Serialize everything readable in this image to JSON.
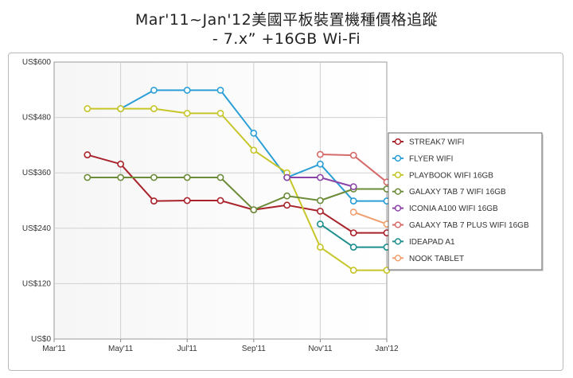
{
  "title_line_1": "Mar'11~Jan'12美國平板裝置機種價格追蹤",
  "title_line_2": "- 7.x”  +16GB Wi-Fi",
  "chart_data": {
    "type": "line",
    "title": "Mar'11~Jan'12美國平板裝置機種價格追蹤 - 7.x”  +16GB Wi-Fi",
    "xlabel": "",
    "ylabel": "",
    "x_tick_labels": [
      "Mar'11",
      "May'11",
      "Jul'11",
      "Sep'11",
      "Nov'11",
      "Jan'12"
    ],
    "y_tick_labels": [
      "US$0",
      "US$120",
      "US$240",
      "US$360",
      "US$480",
      "US$600"
    ],
    "ylim": [
      0,
      600
    ],
    "grid": true,
    "legend_position": "right",
    "x_points": [
      "Apr'11",
      "May'11",
      "Jun'11",
      "Jul'11",
      "Aug'11",
      "Sep'11",
      "Oct'11",
      "Nov'11",
      "Dec'11",
      "Jan'12"
    ],
    "series": [
      {
        "name": "STREAK7 WIFI",
        "color": "#a8232b",
        "values": [
          399,
          379,
          299,
          300,
          300,
          280,
          290,
          277,
          230,
          230
        ]
      },
      {
        "name": "FLYER WIFI",
        "color": "#2b9fd6",
        "values": [
          null,
          499,
          539,
          539,
          539,
          446,
          350,
          379,
          299,
          299
        ]
      },
      {
        "name": "PLAYBOOK WIFI 16GB",
        "color": "#c6c62a",
        "values": [
          499,
          499,
          499,
          489,
          489,
          409,
          360,
          199,
          149,
          149
        ]
      },
      {
        "name": "GALAXY TAB 7 WIFI 16GB",
        "color": "#6c8c3a",
        "values": [
          350,
          350,
          350,
          350,
          350,
          280,
          310,
          300,
          325,
          325
        ]
      },
      {
        "name": "ICONIA A100 WIFI 16GB",
        "color": "#8a44a8",
        "values": [
          null,
          null,
          null,
          null,
          null,
          null,
          350,
          350,
          330,
          null
        ]
      },
      {
        "name": "GALAXY TAB 7 PLUS WIFI 16GB",
        "color": "#d66a6a",
        "values": [
          null,
          null,
          null,
          null,
          null,
          null,
          null,
          400,
          398,
          340
        ]
      },
      {
        "name": "IDEAPAD A1",
        "color": "#1f8f8f",
        "values": [
          null,
          null,
          null,
          null,
          null,
          null,
          null,
          249,
          199,
          199
        ]
      },
      {
        "name": "NOOK TABLET",
        "color": "#f0a070",
        "values": [
          null,
          null,
          null,
          null,
          null,
          null,
          null,
          null,
          275,
          249
        ]
      }
    ]
  }
}
